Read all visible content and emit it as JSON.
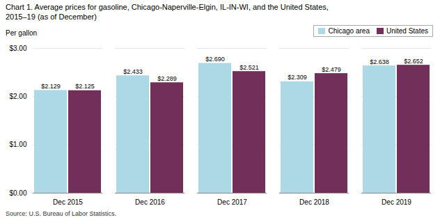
{
  "chart_data": {
    "type": "bar",
    "title": "Chart 1. Average prices for gasoline, Chicago-Naperville-Elgin, IL-IN-WI, and the United States,",
    "subtitle": "2015–19  (as of December)",
    "ylabel": "Per gallon",
    "source": "Source: U.S. Bureau of Labor Statistics.",
    "categories": [
      "Dec 2015",
      "Dec 2016",
      "Dec 2017",
      "Dec 2018",
      "Dec 2019"
    ],
    "series": [
      {
        "name": "Chicago area",
        "color": "#ADD8E6",
        "values": [
          2.129,
          2.433,
          2.69,
          2.309,
          2.638
        ],
        "value_labels": [
          "$2.129",
          "$2.433",
          "$2.690",
          "$2.309",
          "$2.638"
        ]
      },
      {
        "name": "United States",
        "color": "#722F5A",
        "values": [
          2.125,
          2.289,
          2.521,
          2.479,
          2.652
        ],
        "value_labels": [
          "$2.125",
          "$2.289",
          "$2.521",
          "$2.479",
          "$2.652"
        ]
      }
    ],
    "ylim": [
      0.0,
      3.0
    ],
    "yticks": [
      {
        "value": 0.0,
        "label": "$0.00"
      },
      {
        "value": 1.0,
        "label": "$1.00"
      },
      {
        "value": 2.0,
        "label": "$2.00"
      },
      {
        "value": 3.0,
        "label": "$3.00"
      }
    ],
    "grid": true,
    "legend": "top right",
    "data_labels": true
  }
}
